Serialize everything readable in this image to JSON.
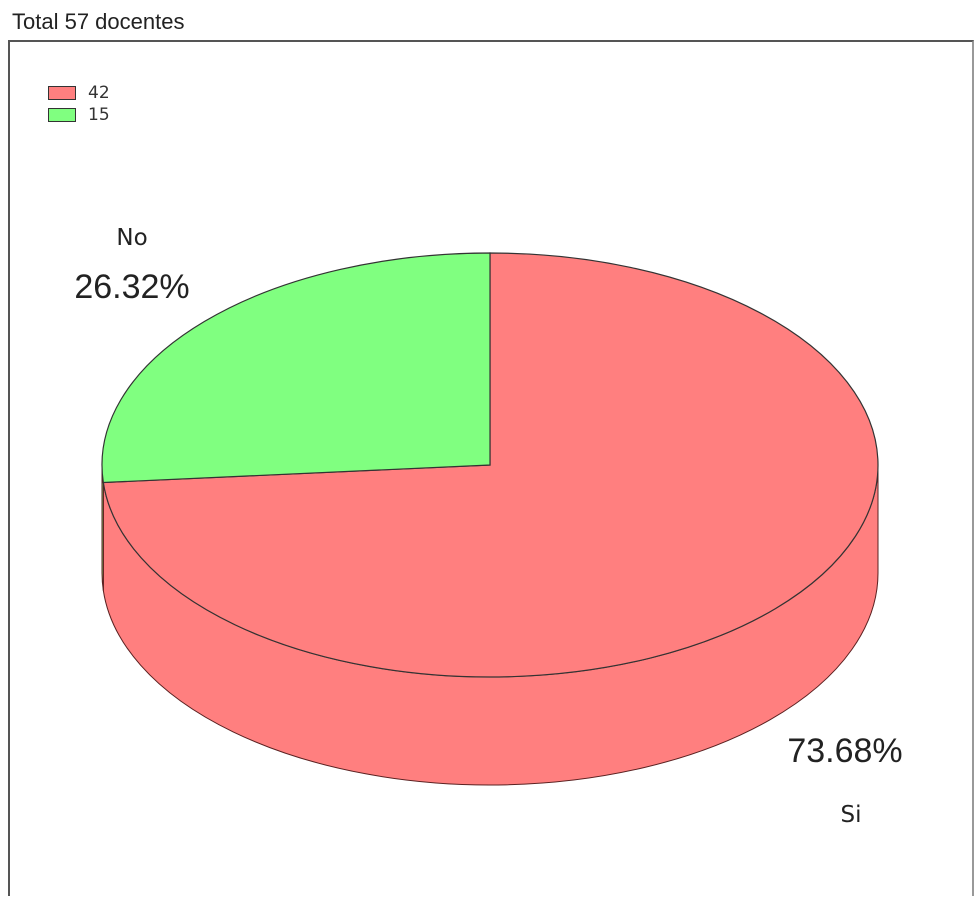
{
  "chart_data": {
    "type": "pie",
    "title": "Total 57 docentes",
    "slices": [
      {
        "label": "Si",
        "value": 42,
        "percent_label": "73.68%",
        "legend_label": "42",
        "color": "#ff7f7f"
      },
      {
        "label": "No",
        "value": 15,
        "percent_label": "26.32%",
        "legend_label": "15",
        "color": "#80ff80"
      }
    ],
    "legend_placement": "top-left",
    "style": "3d"
  }
}
